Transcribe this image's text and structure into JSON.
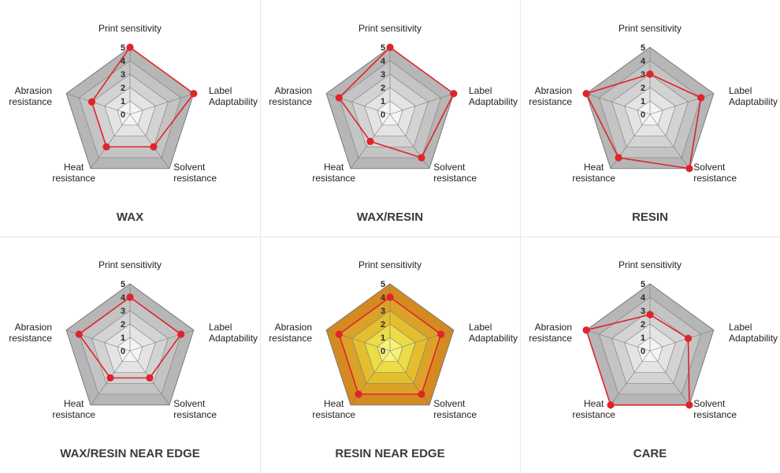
{
  "axes": [
    "Print sensitivity",
    "Label Adaptability",
    "Solvent resistance",
    "Heat resistance",
    "Abrasion resistance"
  ],
  "axis_display": [
    [
      "Print sensitivity"
    ],
    [
      "Label",
      "Adaptability"
    ],
    [
      "Solvent",
      "resistance"
    ],
    [
      "Heat",
      "resistance"
    ],
    [
      "Abrasion",
      "resistance"
    ]
  ],
  "ticks": [
    "0",
    "1",
    "2",
    "3",
    "4",
    "5"
  ],
  "colors": {
    "series_line": "#e0242b",
    "series_point": "#e0242b",
    "gray_rings": [
      "#f4f4f4",
      "#e4e4e4",
      "#d3d3d3",
      "#c4c4c4",
      "#b6b6b6"
    ],
    "gold_rings": [
      "#f6f27a",
      "#ecdc45",
      "#e3bf2e",
      "#dba22a",
      "#d48a20"
    ],
    "grid_lines": "#7a7a7a"
  },
  "chart_data": [
    {
      "type": "radar",
      "title": "WAX",
      "ylim": [
        0,
        5
      ],
      "theme": "gray",
      "categories": [
        "Print sensitivity",
        "Label Adaptability",
        "Solvent resistance",
        "Heat resistance",
        "Abrasion resistance"
      ],
      "values": [
        5,
        5,
        3,
        3,
        3
      ]
    },
    {
      "type": "radar",
      "title": "WAX/RESIN",
      "ylim": [
        0,
        5
      ],
      "theme": "gray",
      "categories": [
        "Print sensitivity",
        "Label Adaptability",
        "Solvent resistance",
        "Heat resistance",
        "Abrasion resistance"
      ],
      "values": [
        5,
        5,
        4,
        2.5,
        4
      ]
    },
    {
      "type": "radar",
      "title": "RESIN",
      "ylim": [
        0,
        5
      ],
      "theme": "gray",
      "categories": [
        "Print sensitivity",
        "Label Adaptability",
        "Solvent resistance",
        "Heat resistance",
        "Abrasion resistance"
      ],
      "values": [
        3,
        4,
        5,
        4,
        5
      ]
    },
    {
      "type": "radar",
      "title": "WAX/RESIN NEAR EDGE",
      "ylim": [
        0,
        5
      ],
      "theme": "gray",
      "categories": [
        "Print sensitivity",
        "Label Adaptability",
        "Solvent resistance",
        "Heat resistance",
        "Abrasion resistance"
      ],
      "values": [
        4,
        4,
        2.5,
        2.5,
        4
      ]
    },
    {
      "type": "radar",
      "title": "RESIN NEAR EDGE",
      "ylim": [
        0,
        5
      ],
      "theme": "gold",
      "categories": [
        "Print sensitivity",
        "Label Adaptability",
        "Solvent resistance",
        "Heat resistance",
        "Abrasion resistance"
      ],
      "values": [
        4,
        4,
        4,
        4,
        4
      ]
    },
    {
      "type": "radar",
      "title": "CARE",
      "ylim": [
        0,
        5
      ],
      "theme": "gray",
      "categories": [
        "Print sensitivity",
        "Label Adaptability",
        "Solvent resistance",
        "Heat resistance",
        "Abrasion resistance"
      ],
      "values": [
        2.7,
        3,
        5,
        5,
        5
      ]
    }
  ]
}
